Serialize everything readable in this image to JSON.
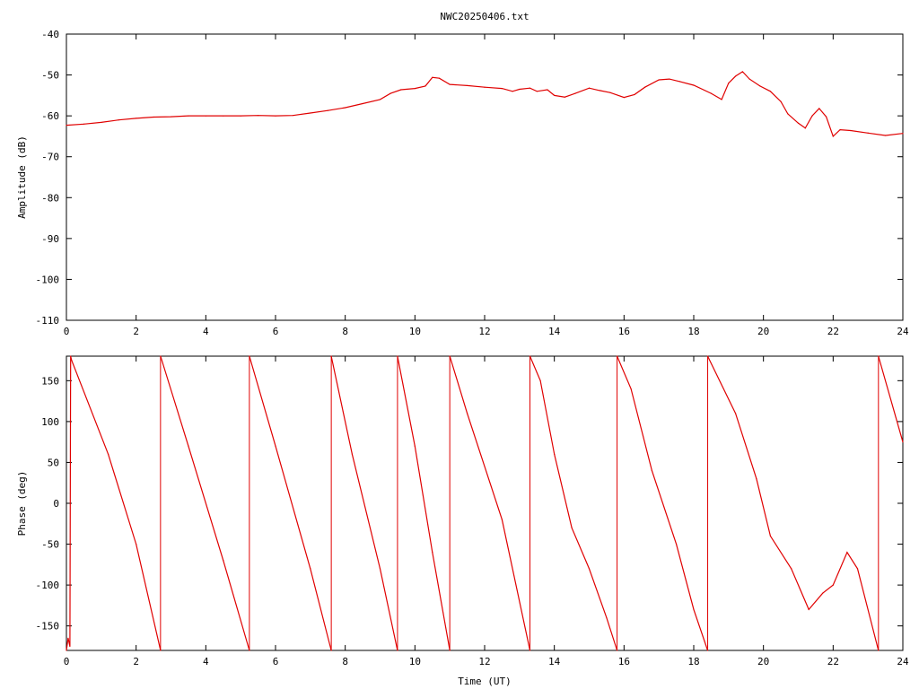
{
  "chart_data": [
    {
      "type": "line",
      "title": "NWC20250406.txt",
      "xlabel": "",
      "ylabel": "Amplitude (dB)",
      "xlim": [
        0,
        24
      ],
      "ylim": [
        -110,
        -40
      ],
      "x_ticks": [
        0,
        2,
        4,
        6,
        8,
        10,
        12,
        14,
        16,
        18,
        20,
        22,
        24
      ],
      "y_ticks": [
        -110,
        -100,
        -90,
        -80,
        -70,
        -60,
        -50,
        -40
      ],
      "grid": false,
      "color": "#e00000",
      "series": [
        {
          "x": [
            0,
            0.5,
            1,
            1.5,
            2,
            2.5,
            3,
            3.5,
            4,
            4.5,
            5,
            5.5,
            6,
            6.5,
            7,
            7.5,
            8,
            8.5,
            9,
            9.3,
            9.6,
            10,
            10.3,
            10.5,
            10.7,
            11,
            11.5,
            12,
            12.5,
            12.8,
            13,
            13.3,
            13.5,
            13.8,
            14,
            14.3,
            14.6,
            15,
            15.3,
            15.6,
            16,
            16.3,
            16.6,
            17,
            17.3,
            17.6,
            18,
            18.5,
            18.8,
            19,
            19.2,
            19.4,
            19.6,
            19.9,
            20.2,
            20.5,
            20.7,
            21,
            21.2,
            21.4,
            21.6,
            21.8,
            22,
            22.2,
            22.5,
            23,
            23.5,
            24
          ],
          "y": [
            -62.3,
            -62,
            -61.6,
            -61,
            -60.6,
            -60.3,
            -60.2,
            -60,
            -60,
            -60,
            -60,
            -59.9,
            -60,
            -59.9,
            -59.3,
            -58.7,
            -58,
            -57,
            -56,
            -54.5,
            -53.6,
            -53.3,
            -52.7,
            -50.6,
            -50.8,
            -52.3,
            -52.6,
            -53,
            -53.3,
            -54,
            -53.5,
            -53.2,
            -54,
            -53.6,
            -55,
            -55.4,
            -54.5,
            -53.2,
            -53.8,
            -54.3,
            -55.5,
            -54.8,
            -53,
            -51.2,
            -51,
            -51.6,
            -52.5,
            -54.5,
            -56,
            -52,
            -50.3,
            -49.2,
            -51,
            -52.7,
            -54,
            -56.5,
            -59.5,
            -61.8,
            -63,
            -60,
            -58.2,
            -60.2,
            -65,
            -63.4,
            -63.6,
            -64.2,
            -64.8,
            -64.3
          ]
        }
      ]
    },
    {
      "type": "line",
      "title": "",
      "xlabel": "Time (UT)",
      "ylabel": "Phase (deg)",
      "xlim": [
        0,
        24
      ],
      "ylim": [
        -180,
        180
      ],
      "x_ticks": [
        0,
        2,
        4,
        6,
        8,
        10,
        12,
        14,
        16,
        18,
        20,
        22,
        24
      ],
      "y_ticks": [
        -150,
        -100,
        -50,
        0,
        50,
        100,
        150
      ],
      "grid": false,
      "color": "#e00000",
      "series": [
        {
          "x": [
            0,
            0.05,
            0.1,
            0.12,
            0.15,
            1.2,
            2,
            2.7,
            2.7,
            3.5,
            4.5,
            5.25,
            5.25,
            6,
            7,
            7.6,
            7.6,
            8.2,
            9,
            9.5,
            9.5,
            10,
            10.5,
            11,
            11,
            11.5,
            12.5,
            13.3,
            13.3,
            13.6,
            14,
            14.5,
            15,
            15.5,
            15.8,
            15.8,
            16.2,
            16.8,
            17.5,
            18,
            18.4,
            18.4,
            19.2,
            19.8,
            20.2,
            20.8,
            21.3,
            21.7,
            22,
            22.4,
            22.7,
            23.3,
            23.3,
            24
          ],
          "y": [
            -180,
            -165,
            -175,
            180,
            175,
            60,
            -50,
            -180,
            180,
            70,
            -70,
            -180,
            180,
            70,
            -80,
            -180,
            180,
            60,
            -80,
            -180,
            180,
            70,
            -60,
            -180,
            180,
            110,
            -20,
            -180,
            180,
            150,
            60,
            -30,
            -80,
            -140,
            -180,
            180,
            140,
            40,
            -50,
            -130,
            -180,
            180,
            110,
            30,
            -40,
            -80,
            -130,
            -110,
            -100,
            -60,
            -80,
            -180,
            180,
            75
          ]
        }
      ]
    }
  ]
}
